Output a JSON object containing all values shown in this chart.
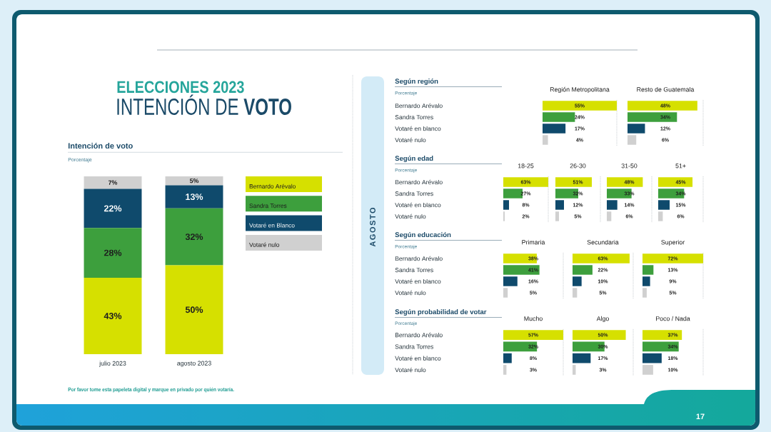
{
  "chart_data": [
    {
      "type": "other",
      "title": "ELECCIONES 2023",
      "subtitle": "INTENCIÓN DE **VOTO**",
      "annotations": [
        "Por favor tome esta papeleta digital y marque en privado por quién votaría.",
        "17"
      ]
    },
    {
      "type": "bar",
      "title": "Intención de voto",
      "subtitle": "Porcentaje",
      "categories": [
        "julio 2023",
        "agosto 2023"
      ],
      "stacked": true,
      "tick_labels": "x",
      "legend": "right",
      "series": [
        {
          "name": "Bernardo Arévalo",
          "color": "#d6e000",
          "values": [
            43,
            50
          ],
          "value_labels": [
            "43%",
            "50%"
          ]
        },
        {
          "name": "Sandra Torres",
          "color": "#3d9f3d",
          "values": [
            28,
            32
          ],
          "value_labels": [
            "28%",
            "32%"
          ]
        },
        {
          "name": "Votaré en Blanco",
          "color": "#0f4a6c",
          "values": [
            22,
            13
          ],
          "value_labels": [
            "22%",
            "13%"
          ]
        },
        {
          "name": "Votaré nulo",
          "color": "#d0d0d0",
          "values": [
            7,
            5
          ],
          "value_labels": [
            "7%",
            "5%"
          ]
        }
      ]
    },
    {
      "type": "other",
      "title": "AGOSTO"
    },
    {
      "type": "other",
      "title": "Según región",
      "subtitle": "Porcentaje"
    },
    {
      "type": "bar",
      "orientation": "horizontal",
      "title": "Región Metropolitana",
      "categories": [
        "Bernardo Arévalo",
        "Sandra Torres",
        "Votaré en blanco",
        "Votaré nulo"
      ],
      "values": [
        55,
        24,
        17,
        4
      ],
      "value_labels": [
        "55%",
        "24%",
        "17%",
        "4%"
      ],
      "colors": [
        "#d6e000",
        "#3d9f3d",
        "#0f4a6c",
        "#d0d0d0"
      ],
      "xlim": [
        0,
        55
      ],
      "tick_labels": "y"
    },
    {
      "type": "bar",
      "orientation": "horizontal",
      "title": "Resto de Guatemala",
      "categories": [
        null,
        null,
        null,
        null
      ],
      "values": [
        48,
        34,
        12,
        6
      ],
      "value_labels": [
        "48%",
        "34%",
        "12%",
        "6%"
      ],
      "colors": [
        "#d6e000",
        "#3d9f3d",
        "#0f4a6c",
        "#d0d0d0"
      ],
      "xlim": [
        0,
        52
      ]
    },
    {
      "type": "other",
      "title": "Según edad",
      "subtitle": "Porcentaje"
    },
    {
      "type": "bar",
      "orientation": "horizontal",
      "title": "18-25",
      "categories": [
        "Bernardo Arévalo",
        "Sandra Torres",
        "Votaré en blanco",
        "Votaré nulo"
      ],
      "values": [
        63,
        27,
        8,
        2
      ],
      "value_labels": [
        "63%",
        "27%",
        "8%",
        "2%"
      ],
      "colors": [
        "#d6e000",
        "#3d9f3d",
        "#0f4a6c",
        "#d0d0d0"
      ],
      "xlim": [
        0,
        63
      ],
      "tick_labels": "y"
    },
    {
      "type": "bar",
      "orientation": "horizontal",
      "title": "26-30",
      "categories": [
        null,
        null,
        null,
        null
      ],
      "values": [
        51,
        32,
        12,
        5
      ],
      "value_labels": [
        "51%",
        "32%",
        "12%",
        "5%"
      ],
      "colors": [
        "#d6e000",
        "#3d9f3d",
        "#0f4a6c",
        "#d0d0d0"
      ],
      "xlim": [
        0,
        63
      ]
    },
    {
      "type": "bar",
      "orientation": "horizontal",
      "title": "31-50",
      "categories": [
        null,
        null,
        null,
        null
      ],
      "values": [
        48,
        33,
        14,
        6
      ],
      "value_labels": [
        "48%",
        "33%",
        "14%",
        "6%"
      ],
      "colors": [
        "#d6e000",
        "#3d9f3d",
        "#0f4a6c",
        "#d0d0d0"
      ],
      "xlim": [
        0,
        60
      ]
    },
    {
      "type": "bar",
      "orientation": "horizontal",
      "title": "51+",
      "categories": [
        null,
        null,
        null,
        null
      ],
      "values": [
        45,
        34,
        15,
        6
      ],
      "value_labels": [
        "45%",
        "34%",
        "15%",
        "6%"
      ],
      "colors": [
        "#d6e000",
        "#3d9f3d",
        "#0f4a6c",
        "#d0d0d0"
      ],
      "xlim": [
        0,
        59
      ]
    },
    {
      "type": "other",
      "title": "Según educación",
      "subtitle": "Porcentaje"
    },
    {
      "type": "bar",
      "orientation": "horizontal",
      "title": "Primaria",
      "categories": [
        "Bernardo Arévalo",
        "Sandra Torres",
        "Votaré en blanco",
        "Votaré nulo"
      ],
      "values": [
        38,
        41,
        16,
        5
      ],
      "value_labels": [
        "38%",
        "41%",
        "16%",
        "5%"
      ],
      "colors": [
        "#d6e000",
        "#3d9f3d",
        "#0f4a6c",
        "#d0d0d0"
      ],
      "xlim": [
        0,
        68
      ],
      "tick_labels": "y"
    },
    {
      "type": "bar",
      "orientation": "horizontal",
      "title": "Secundaria",
      "categories": [
        null,
        null,
        null,
        null
      ],
      "values": [
        63,
        22,
        10,
        5
      ],
      "value_labels": [
        "63%",
        "22%",
        "10%",
        "5%"
      ],
      "colors": [
        "#d6e000",
        "#3d9f3d",
        "#0f4a6c",
        "#d0d0d0"
      ],
      "xlim": [
        0,
        67
      ]
    },
    {
      "type": "bar",
      "orientation": "horizontal",
      "title": "Superior",
      "categories": [
        null,
        null,
        null,
        null
      ],
      "values": [
        72,
        13,
        9,
        5
      ],
      "value_labels": [
        "72%",
        "13%",
        "9%",
        "5%"
      ],
      "colors": [
        "#d6e000",
        "#3d9f3d",
        "#0f4a6c",
        "#d0d0d0"
      ],
      "xlim": [
        0,
        72
      ]
    },
    {
      "type": "other",
      "title": "Según probabilidad de votar",
      "subtitle": "Porcentaje"
    },
    {
      "type": "bar",
      "orientation": "horizontal",
      "title": "Mucho",
      "categories": [
        "Bernardo Arévalo",
        "Sandra Torres",
        "Votaré en blanco",
        "Votaré nulo"
      ],
      "values": [
        57,
        32,
        8,
        3
      ],
      "value_labels": [
        "57%",
        "32%",
        "8%",
        "3%"
      ],
      "colors": [
        "#d6e000",
        "#3d9f3d",
        "#0f4a6c",
        "#d0d0d0"
      ],
      "xlim": [
        0,
        57
      ],
      "tick_labels": "y"
    },
    {
      "type": "bar",
      "orientation": "horizontal",
      "title": "Algo",
      "categories": [
        null,
        null,
        null,
        null
      ],
      "values": [
        50,
        30,
        17,
        3
      ],
      "value_labels": [
        "50%",
        "30%",
        "17%",
        "3%"
      ],
      "colors": [
        "#d6e000",
        "#3d9f3d",
        "#0f4a6c",
        "#d0d0d0"
      ],
      "xlim": [
        0,
        57
      ]
    },
    {
      "type": "bar",
      "orientation": "horizontal",
      "title": "Poco / Nada",
      "categories": [
        null,
        null,
        null,
        null
      ],
      "values": [
        37,
        34,
        18,
        10
      ],
      "value_labels": [
        "37%",
        "34%",
        "18%",
        "10%"
      ],
      "colors": [
        "#d6e000",
        "#3d9f3d",
        "#0f4a6c",
        "#d0d0d0"
      ],
      "xlim": [
        0,
        57
      ]
    }
  ]
}
